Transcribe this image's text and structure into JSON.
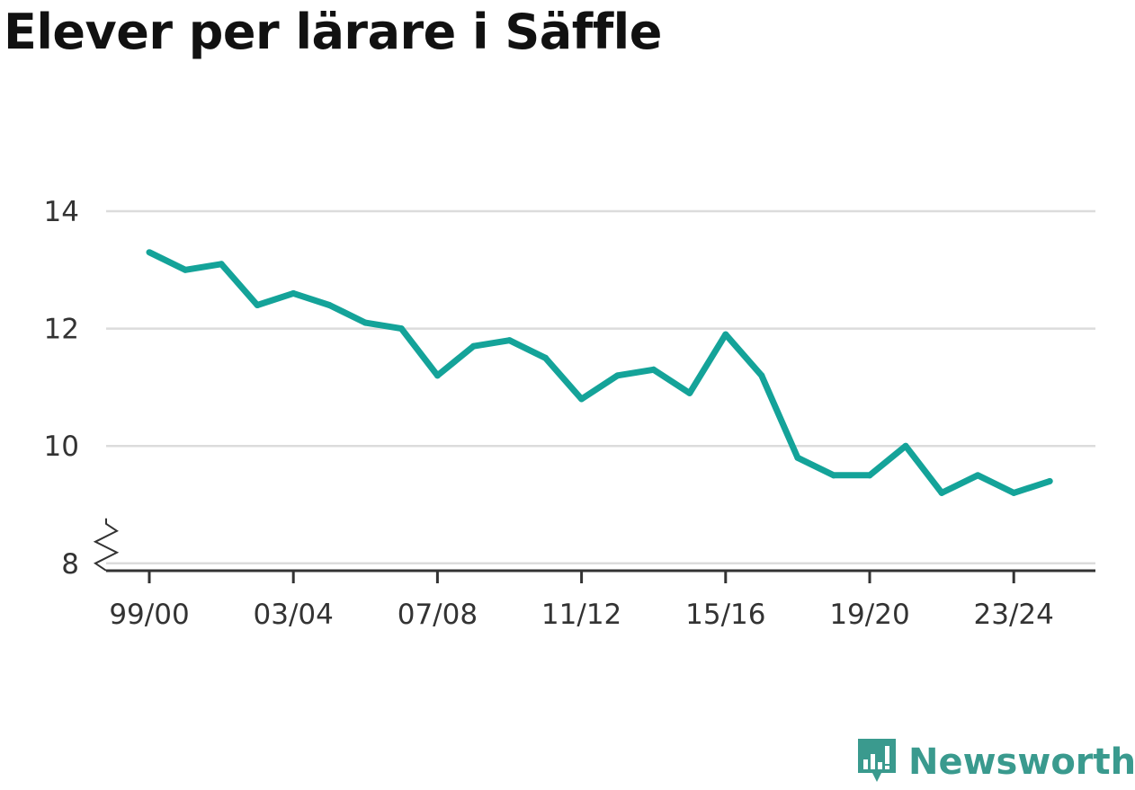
{
  "title": "Elever per lärare i Säffle",
  "brand": {
    "name": "Newsworthy",
    "icon": "bar-chart-speech-bubble-icon",
    "color": "#3a9a8e"
  },
  "colors": {
    "line": "#14a399",
    "grid": "#dcdcdc",
    "axis": "#333333"
  },
  "chart_data": {
    "type": "line",
    "title": "Elever per lärare i Säffle",
    "xlabel": "",
    "ylabel": "",
    "x": [
      "99/00",
      "00/01",
      "01/02",
      "02/03",
      "03/04",
      "04/05",
      "05/06",
      "06/07",
      "07/08",
      "08/09",
      "09/10",
      "10/11",
      "11/12",
      "12/13",
      "13/14",
      "14/15",
      "15/16",
      "16/17",
      "17/18",
      "18/19",
      "19/20",
      "20/21",
      "21/22",
      "22/23",
      "23/24",
      "24/25"
    ],
    "series": [
      {
        "name": "",
        "values": [
          13.3,
          13.0,
          13.1,
          12.4,
          12.6,
          12.4,
          12.1,
          12.0,
          11.2,
          11.7,
          11.8,
          11.5,
          10.8,
          11.2,
          11.3,
          10.9,
          11.9,
          11.2,
          9.8,
          9.5,
          9.5,
          10.0,
          9.2,
          9.5,
          9.2,
          9.4
        ]
      }
    ],
    "x_tick_labels": [
      "99/00",
      "03/04",
      "07/08",
      "11/12",
      "15/16",
      "19/20",
      "23/24"
    ],
    "y_ticks": [
      8,
      10,
      12,
      14
    ],
    "y_tick_labels": [
      "8",
      "10",
      "12",
      "14"
    ],
    "ylim": [
      8,
      14
    ],
    "y_axis_break": true,
    "grid": "horizontal",
    "legend": "none"
  }
}
